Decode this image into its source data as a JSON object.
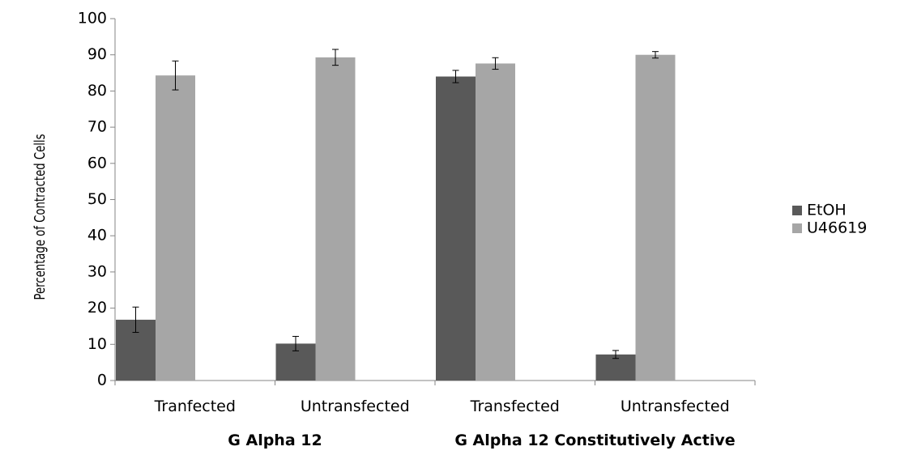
{
  "chart_data": {
    "type": "bar",
    "title": "",
    "xlabel": "",
    "ylabel": "Percentage of Contracted Cells",
    "ylim": [
      0,
      100
    ],
    "yticks": [
      0,
      10,
      20,
      30,
      40,
      50,
      60,
      70,
      80,
      90,
      100
    ],
    "grid": false,
    "legend_position": "right",
    "categories": [
      "Tranfected",
      "Untransfected",
      "Transfected",
      "Untransfected"
    ],
    "groups": [
      {
        "label": "G Alpha 12",
        "categories": [
          0,
          1
        ]
      },
      {
        "label": "G Alpha 12 Constitutively Active",
        "categories": [
          2,
          3
        ]
      }
    ],
    "series": [
      {
        "name": "EtOH",
        "color": "#595959",
        "values": [
          16.8,
          10.2,
          84.0,
          7.2
        ],
        "errors": [
          3.5,
          2.0,
          1.7,
          1.1
        ]
      },
      {
        "name": "U46619",
        "color": "#a6a6a6",
        "values": [
          84.3,
          89.3,
          87.6,
          90.0
        ],
        "errors": [
          4.0,
          2.2,
          1.6,
          0.9
        ]
      }
    ]
  }
}
